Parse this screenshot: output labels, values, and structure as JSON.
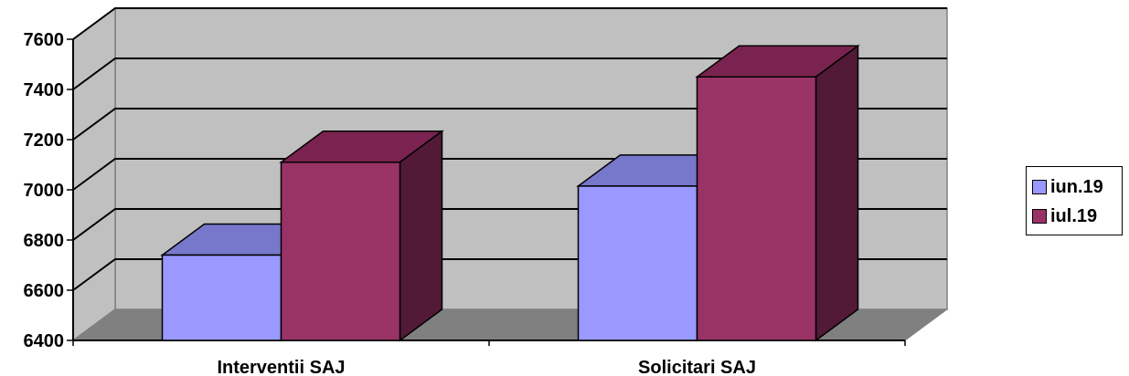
{
  "chart_data": {
    "type": "bar",
    "style": "3d-clustered-column",
    "categories": [
      "Interventii SAJ",
      "Solicitari SAJ"
    ],
    "series": [
      {
        "name": "iun.19",
        "values": [
          6740,
          7015
        ],
        "color": "#9999FF",
        "top_color": "#7777CC",
        "side_color": "#5F5FAA"
      },
      {
        "name": "iul.19",
        "values": [
          7110,
          7450
        ],
        "color": "#993366",
        "top_color": "#7A2350",
        "side_color": "#521A36"
      }
    ],
    "ylim": [
      6400,
      7600
    ],
    "yticks": [
      "6400",
      "6600",
      "6800",
      "7000",
      "7200",
      "7400",
      "7600"
    ],
    "grid": true,
    "legend_position": "right",
    "wall_color": "#C0C0C0",
    "floor_color": "#808080"
  }
}
